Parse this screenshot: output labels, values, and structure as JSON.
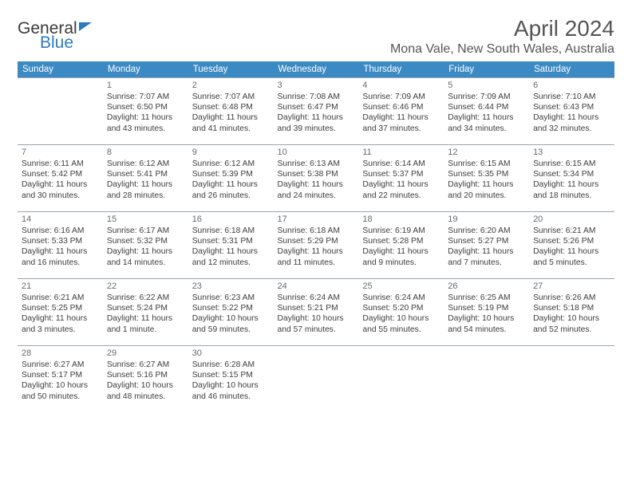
{
  "brand": {
    "part1": "General",
    "part2": "Blue"
  },
  "title": "April 2024",
  "location": "Mona Vale, New South Wales, Australia",
  "headers": [
    "Sunday",
    "Monday",
    "Tuesday",
    "Wednesday",
    "Thursday",
    "Friday",
    "Saturday"
  ],
  "header_bg": "#3b8ac4",
  "header_fg": "#ffffff",
  "grid_line": "#9aa5ad",
  "weeks": [
    [
      null,
      {
        "n": "1",
        "sr": "7:07 AM",
        "ss": "6:50 PM",
        "dl": "11 hours and 43 minutes."
      },
      {
        "n": "2",
        "sr": "7:07 AM",
        "ss": "6:48 PM",
        "dl": "11 hours and 41 minutes."
      },
      {
        "n": "3",
        "sr": "7:08 AM",
        "ss": "6:47 PM",
        "dl": "11 hours and 39 minutes."
      },
      {
        "n": "4",
        "sr": "7:09 AM",
        "ss": "6:46 PM",
        "dl": "11 hours and 37 minutes."
      },
      {
        "n": "5",
        "sr": "7:09 AM",
        "ss": "6:44 PM",
        "dl": "11 hours and 34 minutes."
      },
      {
        "n": "6",
        "sr": "7:10 AM",
        "ss": "6:43 PM",
        "dl": "11 hours and 32 minutes."
      }
    ],
    [
      {
        "n": "7",
        "sr": "6:11 AM",
        "ss": "5:42 PM",
        "dl": "11 hours and 30 minutes."
      },
      {
        "n": "8",
        "sr": "6:12 AM",
        "ss": "5:41 PM",
        "dl": "11 hours and 28 minutes."
      },
      {
        "n": "9",
        "sr": "6:12 AM",
        "ss": "5:39 PM",
        "dl": "11 hours and 26 minutes."
      },
      {
        "n": "10",
        "sr": "6:13 AM",
        "ss": "5:38 PM",
        "dl": "11 hours and 24 minutes."
      },
      {
        "n": "11",
        "sr": "6:14 AM",
        "ss": "5:37 PM",
        "dl": "11 hours and 22 minutes."
      },
      {
        "n": "12",
        "sr": "6:15 AM",
        "ss": "5:35 PM",
        "dl": "11 hours and 20 minutes."
      },
      {
        "n": "13",
        "sr": "6:15 AM",
        "ss": "5:34 PM",
        "dl": "11 hours and 18 minutes."
      }
    ],
    [
      {
        "n": "14",
        "sr": "6:16 AM",
        "ss": "5:33 PM",
        "dl": "11 hours and 16 minutes."
      },
      {
        "n": "15",
        "sr": "6:17 AM",
        "ss": "5:32 PM",
        "dl": "11 hours and 14 minutes."
      },
      {
        "n": "16",
        "sr": "6:18 AM",
        "ss": "5:31 PM",
        "dl": "11 hours and 12 minutes."
      },
      {
        "n": "17",
        "sr": "6:18 AM",
        "ss": "5:29 PM",
        "dl": "11 hours and 11 minutes."
      },
      {
        "n": "18",
        "sr": "6:19 AM",
        "ss": "5:28 PM",
        "dl": "11 hours and 9 minutes."
      },
      {
        "n": "19",
        "sr": "6:20 AM",
        "ss": "5:27 PM",
        "dl": "11 hours and 7 minutes."
      },
      {
        "n": "20",
        "sr": "6:21 AM",
        "ss": "5:26 PM",
        "dl": "11 hours and 5 minutes."
      }
    ],
    [
      {
        "n": "21",
        "sr": "6:21 AM",
        "ss": "5:25 PM",
        "dl": "11 hours and 3 minutes."
      },
      {
        "n": "22",
        "sr": "6:22 AM",
        "ss": "5:24 PM",
        "dl": "11 hours and 1 minute."
      },
      {
        "n": "23",
        "sr": "6:23 AM",
        "ss": "5:22 PM",
        "dl": "10 hours and 59 minutes."
      },
      {
        "n": "24",
        "sr": "6:24 AM",
        "ss": "5:21 PM",
        "dl": "10 hours and 57 minutes."
      },
      {
        "n": "25",
        "sr": "6:24 AM",
        "ss": "5:20 PM",
        "dl": "10 hours and 55 minutes."
      },
      {
        "n": "26",
        "sr": "6:25 AM",
        "ss": "5:19 PM",
        "dl": "10 hours and 54 minutes."
      },
      {
        "n": "27",
        "sr": "6:26 AM",
        "ss": "5:18 PM",
        "dl": "10 hours and 52 minutes."
      }
    ],
    [
      {
        "n": "28",
        "sr": "6:27 AM",
        "ss": "5:17 PM",
        "dl": "10 hours and 50 minutes."
      },
      {
        "n": "29",
        "sr": "6:27 AM",
        "ss": "5:16 PM",
        "dl": "10 hours and 48 minutes."
      },
      {
        "n": "30",
        "sr": "6:28 AM",
        "ss": "5:15 PM",
        "dl": "10 hours and 46 minutes."
      },
      null,
      null,
      null,
      null
    ]
  ],
  "labels": {
    "sunrise": "Sunrise: ",
    "sunset": "Sunset: ",
    "daylight": "Daylight: "
  }
}
